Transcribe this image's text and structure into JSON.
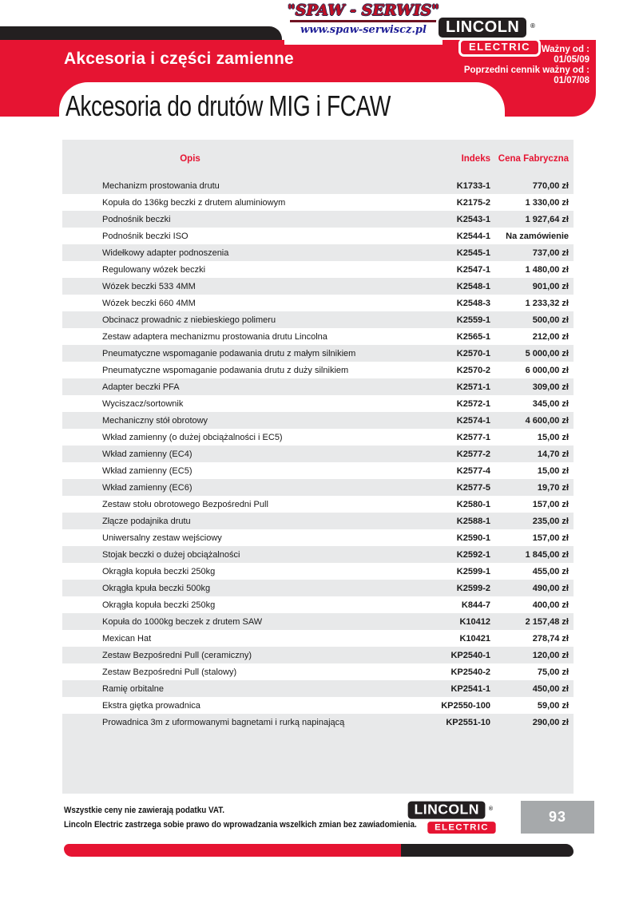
{
  "header": {
    "banner_title": "Akcesoria i części zamienne",
    "page_title": "Akcesoria do drutów MIG i FCAW",
    "spaw_logo": {
      "name": "\"SPAW - SERWIS\"",
      "url": "www.spaw-serwiscz.pl"
    },
    "lincoln_logo": {
      "line1": "LINCOLN",
      "line2": "ELECTRIC",
      "registered": "®"
    },
    "validity": {
      "line1": "Ważny od :",
      "line2": "01/05/09",
      "line3": "Poprzedni cennik ważny od :",
      "line4": "01/07/08"
    }
  },
  "table": {
    "columns": [
      "Opis",
      "Indeks",
      "Cena Fabryczna"
    ],
    "rows": [
      {
        "opis": "Mechanizm prostowania drutu",
        "indeks": "K1733-1",
        "cena": "770,00 zł"
      },
      {
        "opis": "Kopuła do 136kg beczki z drutem aluminiowym",
        "indeks": "K2175-2",
        "cena": "1 330,00 zł"
      },
      {
        "opis": "Podnośnik beczki",
        "indeks": "K2543-1",
        "cena": "1 927,64 zł"
      },
      {
        "opis": "Podnośnik beczki ISO",
        "indeks": "K2544-1",
        "cena": "Na zamówienie"
      },
      {
        "opis": "Widełkowy adapter podnoszenia",
        "indeks": "K2545-1",
        "cena": "737,00 zł"
      },
      {
        "opis": "Regulowany wózek beczki",
        "indeks": "K2547-1",
        "cena": "1 480,00 zł"
      },
      {
        "opis": "Wózek beczki 533 4MM",
        "indeks": "K2548-1",
        "cena": "901,00 zł"
      },
      {
        "opis": "Wózek beczki 660 4MM",
        "indeks": "K2548-3",
        "cena": "1 233,32 zł"
      },
      {
        "opis": "Obcinacz prowadnic z niebieskiego polimeru",
        "indeks": "K2559-1",
        "cena": "500,00 zł"
      },
      {
        "opis": "Zestaw adaptera mechanizmu prostowania drutu Lincolna",
        "indeks": "K2565-1",
        "cena": "212,00 zł"
      },
      {
        "opis": "Pneumatyczne wspomaganie podawania drutu z małym silnikiem",
        "indeks": "K2570-1",
        "cena": "5 000,00 zł"
      },
      {
        "opis": "Pneumatyczne wspomaganie podawania drutu z duży silnikiem",
        "indeks": "K2570-2",
        "cena": "6 000,00 zł"
      },
      {
        "opis": "Adapter beczki PFA",
        "indeks": "K2571-1",
        "cena": "309,00 zł"
      },
      {
        "opis": "Wyciszacz/sortownik",
        "indeks": "K2572-1",
        "cena": "345,00 zł"
      },
      {
        "opis": "Mechaniczny stół obrotowy",
        "indeks": "K2574-1",
        "cena": "4 600,00 zł"
      },
      {
        "opis": "Wkład zamienny (o dużej obciążalności i EC5)",
        "indeks": "K2577-1",
        "cena": "15,00 zł"
      },
      {
        "opis": "Wkład zamienny (EC4)",
        "indeks": "K2577-2",
        "cena": "14,70 zł"
      },
      {
        "opis": "Wkład zamienny (EC5)",
        "indeks": "K2577-4",
        "cena": "15,00 zł"
      },
      {
        "opis": "Wkład zamienny (EC6)",
        "indeks": "K2577-5",
        "cena": "19,70 zł"
      },
      {
        "opis": "Zestaw stołu obrotowego Bezpośredni Pull",
        "indeks": "K2580-1",
        "cena": "157,00 zł"
      },
      {
        "opis": "Złącze podajnika drutu",
        "indeks": "K2588-1",
        "cena": "235,00 zł"
      },
      {
        "opis": "Uniwersalny zestaw wejściowy",
        "indeks": "K2590-1",
        "cena": "157,00 zł"
      },
      {
        "opis": "Stojak beczki o dużej obciążalności",
        "indeks": "K2592-1",
        "cena": "1 845,00 zł"
      },
      {
        "opis": "Okrągła kopuła beczki 250kg",
        "indeks": "K2599-1",
        "cena": "455,00 zł"
      },
      {
        "opis": "Okrągła kpuła beczki 500kg",
        "indeks": "K2599-2",
        "cena": "490,00 zł"
      },
      {
        "opis": "Okrągła kopuła beczki 250kg",
        "indeks": "K844-7",
        "cena": "400,00 zł"
      },
      {
        "opis": "Kopuła do 1000kg beczek z drutem SAW",
        "indeks": "K10412",
        "cena": "2 157,48 zł"
      },
      {
        "opis": "Mexican Hat",
        "indeks": "K10421",
        "cena": "278,74 zł"
      },
      {
        "opis": "Zestaw Bezpośredni Pull (ceramiczny)",
        "indeks": "KP2540-1",
        "cena": "120,00 zł"
      },
      {
        "opis": "Zestaw Bezpośredni Pull (stalowy)",
        "indeks": "KP2540-2",
        "cena": "75,00 zł"
      },
      {
        "opis": "Ramię orbitalne",
        "indeks": "KP2541-1",
        "cena": "450,00 zł"
      },
      {
        "opis": "Ekstra giętka prowadnica",
        "indeks": "KP2550-100",
        "cena": "59,00 zł"
      },
      {
        "opis": "Prowadnica 3m z uformowanymi bagnetami i rurką napinającą",
        "indeks": "KP2551-10",
        "cena": "290,00 zł"
      }
    ]
  },
  "footer": {
    "note1": "Wszystkie ceny nie zawierają podatku VAT.",
    "note2": "Lincoln Electric zastrzega sobie prawo do wprowadzania wszelkich zmian bez zawiadomienia.",
    "lincoln_logo": {
      "line1": "LINCOLN",
      "line2": "ELECTRIC",
      "registered": "®"
    },
    "page_number": "93"
  },
  "colors": {
    "red": "#e61432",
    "black": "#231f20",
    "row_gray": "#e8e9ea",
    "badge_gray": "#a6a9ab",
    "url_blue": "#1e1e96",
    "spaw_red": "#c01025",
    "spaw_outline": "#2e2e52",
    "spaw_underline": "#701323"
  }
}
